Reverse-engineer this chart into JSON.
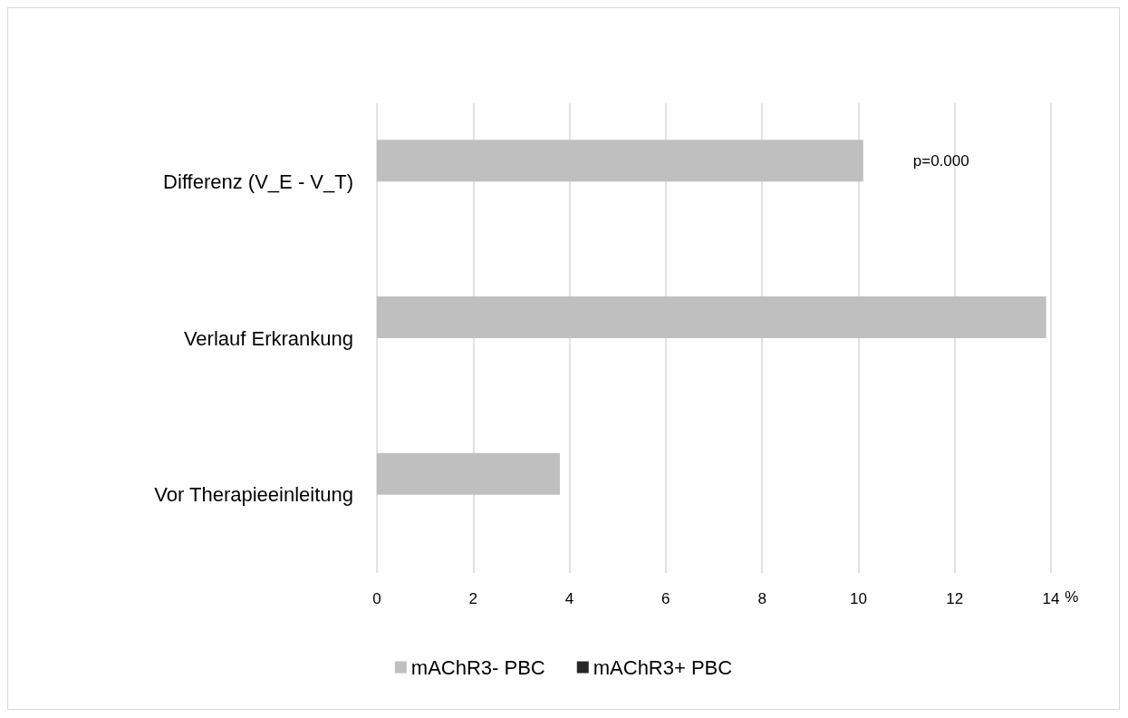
{
  "chart_data": {
    "type": "bar",
    "orientation": "horizontal",
    "categories": [
      "Differenz (V_E - V_T)",
      "Verlauf Erkrankung",
      "Vor Therapieeinleitung"
    ],
    "series": [
      {
        "name": "mAChR3- PBC",
        "color": "#bfbfbf",
        "values": [
          10.1,
          13.9,
          3.8
        ]
      },
      {
        "name": "mAChR3+ PBC",
        "color": "#262626",
        "values": [
          0,
          0,
          0
        ]
      }
    ],
    "xlabel": "%",
    "xlim": [
      0,
      14
    ],
    "xticks": [
      0,
      2,
      4,
      6,
      8,
      10,
      12,
      14
    ],
    "annotations": [
      "p=0.000"
    ],
    "grid": "x",
    "legend": "bottom"
  }
}
